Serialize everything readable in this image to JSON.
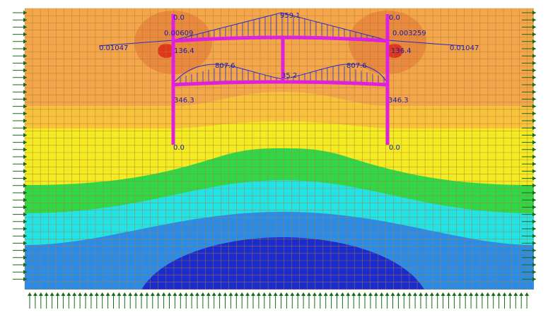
{
  "labels": [
    {
      "text": "0.0"
    },
    {
      "text": "0.00609"
    },
    {
      "text": "0.01047"
    },
    {
      "text": "136.4"
    },
    {
      "text": "959.1"
    },
    {
      "text": "807.6"
    },
    {
      "text": "807.6"
    },
    {
      "text": "35.2"
    },
    {
      "text": "346.3"
    },
    {
      "text": "346.3"
    },
    {
      "text": "0.0"
    },
    {
      "text": "0.0"
    },
    {
      "text": "0.0"
    },
    {
      "text": "0.003259"
    },
    {
      "text": "0.01047"
    },
    {
      "text": "136.4"
    }
  ]
}
